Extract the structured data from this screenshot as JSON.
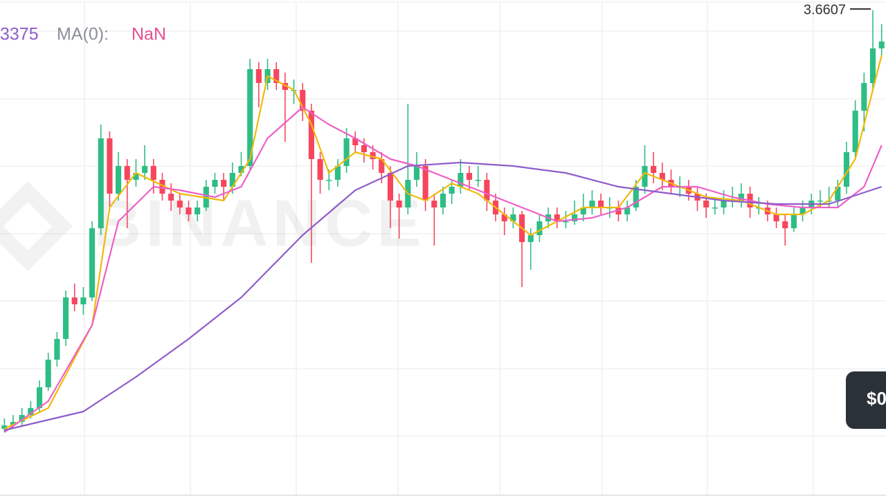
{
  "chart_data": {
    "type": "candlestick",
    "legend": [
      {
        "text": "3375",
        "color": "#8e5cc9"
      },
      {
        "text": "MA(0):",
        "color": "#8a8f98"
      },
      {
        "text": "NaN",
        "color": "#e6508f"
      }
    ],
    "watermark": "BINANCE",
    "price_tag": "$0",
    "ylim": [
      0.84,
      3.72
    ],
    "up_color": "#2ebd85",
    "down_color": "#f6465d",
    "candles": [
      [
        1.24,
        1.3,
        1.22,
        1.26
      ],
      [
        1.26,
        1.32,
        1.24,
        1.28
      ],
      [
        1.28,
        1.36,
        1.26,
        1.32
      ],
      [
        1.32,
        1.4,
        1.3,
        1.36
      ],
      [
        1.36,
        1.52,
        1.34,
        1.48
      ],
      [
        1.48,
        1.68,
        1.46,
        1.64
      ],
      [
        1.64,
        1.8,
        1.6,
        1.76
      ],
      [
        1.76,
        2.04,
        1.72,
        2.0
      ],
      [
        2.0,
        2.08,
        1.92,
        1.96
      ],
      [
        1.96,
        2.06,
        1.9,
        2.0
      ],
      [
        2.0,
        2.44,
        1.98,
        2.4
      ],
      [
        2.4,
        3.0,
        2.36,
        2.92
      ],
      [
        2.92,
        2.96,
        2.5,
        2.6
      ],
      [
        2.6,
        2.84,
        2.56,
        2.76
      ],
      [
        2.76,
        2.8,
        2.4,
        2.68
      ],
      [
        2.68,
        2.8,
        2.64,
        2.72
      ],
      [
        2.72,
        2.88,
        2.68,
        2.76
      ],
      [
        2.76,
        2.8,
        2.6,
        2.68
      ],
      [
        2.68,
        2.72,
        2.56,
        2.6
      ],
      [
        2.6,
        2.66,
        2.5,
        2.56
      ],
      [
        2.56,
        2.6,
        2.48,
        2.52
      ],
      [
        2.52,
        2.56,
        2.44,
        2.48
      ],
      [
        2.48,
        2.56,
        2.44,
        2.52
      ],
      [
        2.52,
        2.68,
        2.5,
        2.64
      ],
      [
        2.64,
        2.72,
        2.6,
        2.68
      ],
      [
        2.68,
        2.72,
        2.56,
        2.64
      ],
      [
        2.64,
        2.78,
        2.6,
        2.72
      ],
      [
        2.72,
        2.84,
        2.7,
        2.76
      ],
      [
        2.76,
        3.38,
        2.74,
        3.32
      ],
      [
        3.32,
        3.36,
        3.1,
        3.24
      ],
      [
        3.24,
        3.38,
        3.2,
        3.32
      ],
      [
        3.32,
        3.36,
        3.2,
        3.24
      ],
      [
        3.24,
        3.3,
        2.9,
        3.2
      ],
      [
        3.2,
        3.26,
        3.12,
        3.2
      ],
      [
        3.2,
        3.24,
        3.02,
        3.08
      ],
      [
        3.08,
        3.12,
        2.2,
        2.8
      ],
      [
        2.8,
        2.84,
        2.6,
        2.68
      ],
      [
        2.68,
        2.74,
        2.62,
        2.68
      ],
      [
        2.68,
        2.8,
        2.64,
        2.76
      ],
      [
        2.76,
        2.98,
        2.72,
        2.92
      ],
      [
        2.92,
        2.96,
        2.84,
        2.88
      ],
      [
        2.88,
        2.92,
        2.78,
        2.84
      ],
      [
        2.84,
        2.88,
        2.74,
        2.8
      ],
      [
        2.8,
        2.84,
        2.66,
        2.72
      ],
      [
        2.72,
        2.76,
        2.4,
        2.56
      ],
      [
        2.56,
        2.6,
        2.34,
        2.52
      ],
      [
        2.52,
        3.12,
        2.48,
        2.68
      ],
      [
        2.68,
        2.84,
        2.64,
        2.76
      ],
      [
        2.76,
        2.8,
        2.5,
        2.56
      ],
      [
        2.56,
        2.6,
        2.3,
        2.52
      ],
      [
        2.52,
        2.64,
        2.48,
        2.6
      ],
      [
        2.6,
        2.68,
        2.54,
        2.64
      ],
      [
        2.64,
        2.8,
        2.6,
        2.72
      ],
      [
        2.72,
        2.76,
        2.62,
        2.68
      ],
      [
        2.68,
        2.76,
        2.64,
        2.68
      ],
      [
        2.68,
        2.72,
        2.5,
        2.56
      ],
      [
        2.56,
        2.6,
        2.44,
        2.48
      ],
      [
        2.48,
        2.52,
        2.36,
        2.44
      ],
      [
        2.44,
        2.52,
        2.4,
        2.48
      ],
      [
        2.48,
        2.5,
        2.06,
        2.32
      ],
      [
        2.32,
        2.4,
        2.16,
        2.36
      ],
      [
        2.36,
        2.48,
        2.32,
        2.44
      ],
      [
        2.44,
        2.52,
        2.4,
        2.48
      ],
      [
        2.48,
        2.52,
        2.4,
        2.44
      ],
      [
        2.44,
        2.5,
        2.4,
        2.44
      ],
      [
        2.44,
        2.56,
        2.42,
        2.48
      ],
      [
        2.48,
        2.6,
        2.44,
        2.52
      ],
      [
        2.52,
        2.62,
        2.48,
        2.56
      ],
      [
        2.56,
        2.6,
        2.48,
        2.52
      ],
      [
        2.52,
        2.58,
        2.46,
        2.52
      ],
      [
        2.52,
        2.56,
        2.44,
        2.48
      ],
      [
        2.48,
        2.56,
        2.44,
        2.52
      ],
      [
        2.52,
        2.68,
        2.5,
        2.64
      ],
      [
        2.64,
        2.88,
        2.6,
        2.76
      ],
      [
        2.76,
        2.84,
        2.66,
        2.72
      ],
      [
        2.72,
        2.78,
        2.62,
        2.68
      ],
      [
        2.68,
        2.74,
        2.6,
        2.64
      ],
      [
        2.64,
        2.7,
        2.58,
        2.64
      ],
      [
        2.64,
        2.68,
        2.56,
        2.6
      ],
      [
        2.6,
        2.64,
        2.5,
        2.56
      ],
      [
        2.56,
        2.6,
        2.46,
        2.52
      ],
      [
        2.52,
        2.58,
        2.48,
        2.52
      ],
      [
        2.52,
        2.62,
        2.48,
        2.56
      ],
      [
        2.56,
        2.64,
        2.52,
        2.56
      ],
      [
        2.56,
        2.66,
        2.52,
        2.6
      ],
      [
        2.6,
        2.64,
        2.46,
        2.52
      ],
      [
        2.52,
        2.58,
        2.48,
        2.52
      ],
      [
        2.52,
        2.56,
        2.44,
        2.48
      ],
      [
        2.48,
        2.52,
        2.4,
        2.44
      ],
      [
        2.44,
        2.48,
        2.3,
        2.4
      ],
      [
        2.4,
        2.52,
        2.38,
        2.48
      ],
      [
        2.48,
        2.56,
        2.44,
        2.52
      ],
      [
        2.52,
        2.6,
        2.48,
        2.56
      ],
      [
        2.56,
        2.62,
        2.52,
        2.56
      ],
      [
        2.56,
        2.64,
        2.52,
        2.56
      ],
      [
        2.56,
        2.68,
        2.52,
        2.64
      ],
      [
        2.64,
        2.9,
        2.6,
        2.84
      ],
      [
        2.84,
        3.14,
        2.8,
        3.08
      ],
      [
        3.08,
        3.3,
        2.96,
        3.24
      ],
      [
        3.24,
        3.6607,
        3.2,
        3.44
      ],
      [
        3.44,
        3.58,
        3.4,
        3.48
      ]
    ],
    "lines": [
      {
        "color": "#f0b90b",
        "x": [
          0,
          5,
          10,
          12,
          15,
          20,
          25,
          28,
          30,
          33,
          35,
          37,
          40,
          43,
          46,
          48,
          51,
          54,
          57,
          60,
          63,
          66,
          70,
          73,
          76,
          80,
          84,
          88,
          91,
          94,
          97,
          100
        ],
        "values": [
          1.24,
          1.36,
          1.84,
          2.52,
          2.72,
          2.6,
          2.56,
          2.8,
          3.28,
          3.2,
          3.0,
          2.72,
          2.84,
          2.8,
          2.6,
          2.56,
          2.66,
          2.6,
          2.48,
          2.36,
          2.44,
          2.52,
          2.52,
          2.72,
          2.66,
          2.58,
          2.56,
          2.48,
          2.48,
          2.56,
          2.8,
          3.4
        ]
      },
      {
        "color": "#ee5fc6",
        "x": [
          0,
          5,
          10,
          13,
          17,
          20,
          24,
          27,
          30,
          34,
          37,
          40,
          44,
          47,
          51,
          55,
          59,
          63,
          67,
          71,
          75,
          79,
          83,
          87,
          91,
          95,
          98,
          100
        ],
        "values": [
          1.22,
          1.4,
          1.84,
          2.44,
          2.64,
          2.62,
          2.58,
          2.64,
          2.92,
          3.1,
          3.0,
          2.92,
          2.8,
          2.76,
          2.68,
          2.6,
          2.52,
          2.44,
          2.46,
          2.52,
          2.64,
          2.64,
          2.58,
          2.54,
          2.52,
          2.52,
          2.64,
          2.88
        ]
      },
      {
        "color": "#8e5cc9",
        "x": [
          0,
          9,
          15,
          21,
          27,
          34,
          40,
          46,
          52,
          58,
          64,
          70,
          76,
          82,
          88,
          94,
          100
        ],
        "values": [
          1.232,
          1.34,
          1.54,
          1.76,
          2.0,
          2.36,
          2.62,
          2.76,
          2.78,
          2.76,
          2.72,
          2.64,
          2.6,
          2.56,
          2.54,
          2.54,
          2.64
        ]
      }
    ]
  }
}
